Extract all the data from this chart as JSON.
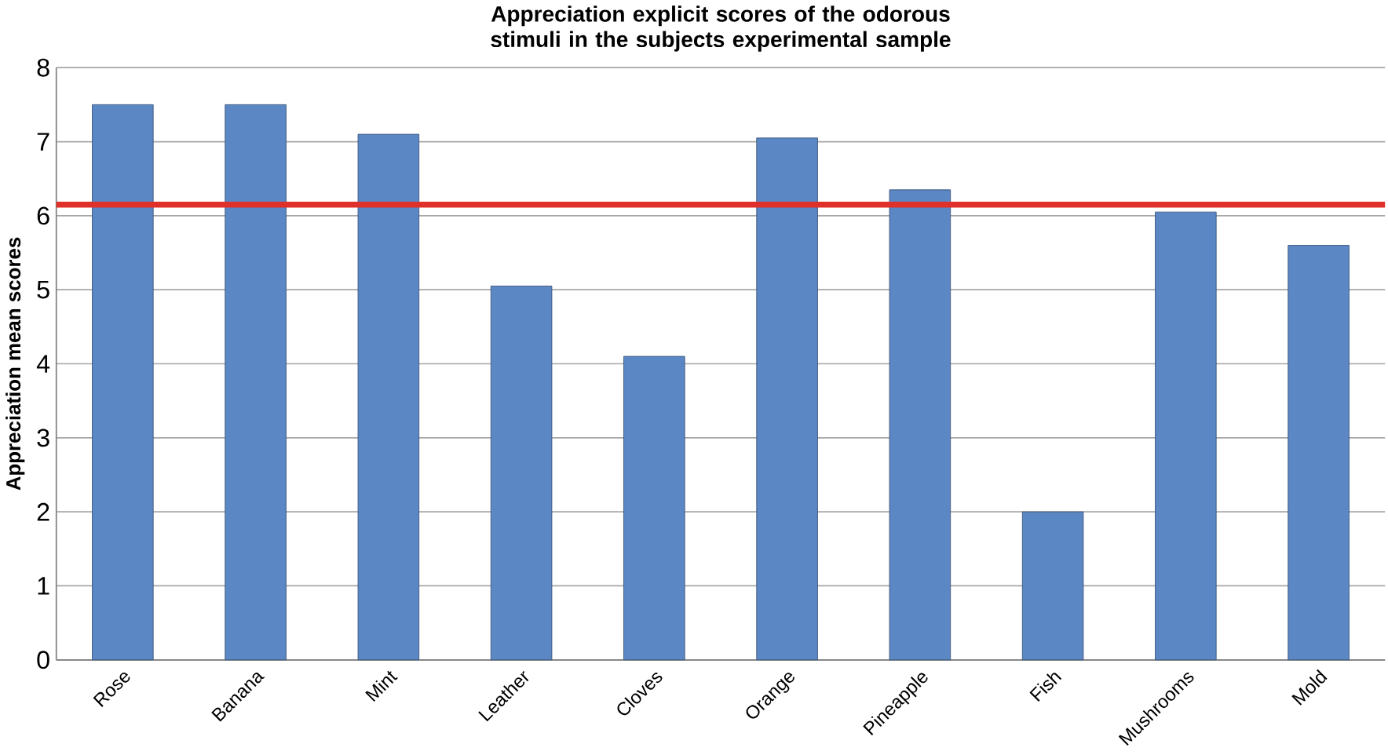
{
  "chart_data": {
    "type": "bar",
    "title": "Appreciation explicit scores of the odorous stimuli in the subjects experimental sample",
    "ylabel": "Appreciation mean scores",
    "categories": [
      "Rose",
      "Banana",
      "Mint",
      "Leather",
      "Cloves",
      "Orange",
      "Pineapple",
      "Fish",
      "Mushrooms",
      "Mold"
    ],
    "values": [
      7.5,
      7.5,
      7.1,
      5.05,
      4.1,
      7.05,
      6.35,
      2.0,
      6.05,
      5.6
    ],
    "color": "#5b87c4",
    "ylim": [
      0,
      8
    ],
    "yticks": [
      0,
      1,
      2,
      3,
      4,
      5,
      6,
      7,
      8
    ],
    "grid": "y",
    "ref_lines": [
      {
        "axis": "y",
        "value": 6.15,
        "color": "#e0302a"
      }
    ]
  }
}
